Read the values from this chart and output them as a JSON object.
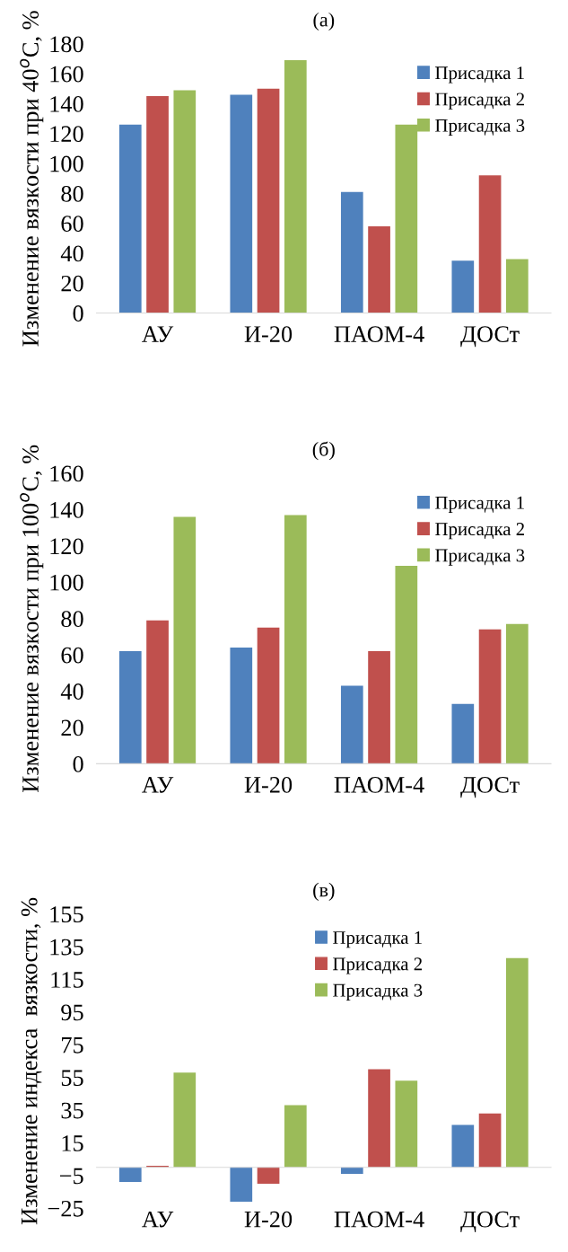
{
  "chart_data": [
    {
      "type": "bar",
      "title": "(a)",
      "ylabel": "Изменение вязкости при 40$^{o}$C, %",
      "categories": [
        "АУ",
        "И-20",
        "ПАОМ-4",
        "ДОСт"
      ],
      "ylim": [
        0,
        180
      ],
      "yticks": [
        0,
        20,
        40,
        60,
        80,
        100,
        120,
        140,
        160,
        180
      ],
      "grid": false,
      "legend": "top right",
      "series": [
        {
          "name": "Присадка 1",
          "color": "#4f81bd",
          "values": [
            126,
            146,
            81,
            35
          ]
        },
        {
          "name": "Присадка 2",
          "color": "#c0504d",
          "values": [
            145,
            150,
            58,
            92
          ]
        },
        {
          "name": "Присадка 3",
          "color": "#9bbb59",
          "values": [
            149,
            169,
            126,
            36
          ]
        }
      ]
    },
    {
      "type": "bar",
      "title": "(б)",
      "ylabel": "Изменение вязкости при 100$^{o}$C, %",
      "categories": [
        "АУ",
        "И-20",
        "ПАОМ-4",
        "ДОСт"
      ],
      "ylim": [
        0,
        160
      ],
      "yticks": [
        0,
        20,
        40,
        60,
        80,
        100,
        120,
        140,
        160
      ],
      "grid": false,
      "legend": "top right",
      "series": [
        {
          "name": "Присадка 1",
          "color": "#4f81bd",
          "values": [
            62,
            64,
            43,
            33
          ]
        },
        {
          "name": "Присадка 2",
          "color": "#c0504d",
          "values": [
            79,
            75,
            62,
            74
          ]
        },
        {
          "name": "Присадка 3",
          "color": "#9bbb59",
          "values": [
            136,
            137,
            109,
            77
          ]
        }
      ]
    },
    {
      "type": "bar",
      "title": "(в)",
      "ylabel": "Изменение индекса  вязкости, %",
      "categories": [
        "АУ",
        "И-20",
        "ПАОМ-4",
        "ДОСт"
      ],
      "ylim": [
        -25,
        155
      ],
      "yticks": [
        {
          "value": -25,
          "label": "−25"
        },
        {
          "value": -5,
          "label": "−5"
        },
        15,
        35,
        55,
        75,
        95,
        115,
        135,
        155
      ],
      "grid": false,
      "legend": "top",
      "series": [
        {
          "name": "Присадка 1",
          "color": "#4f81bd",
          "values": [
            -9,
            -21,
            -4,
            26
          ]
        },
        {
          "name": "Присадка 2",
          "color": "#c0504d",
          "values": [
            1,
            -10,
            60,
            33
          ]
        },
        {
          "name": "Присадка 3",
          "color": "#9bbb59",
          "values": [
            58,
            38,
            53,
            128
          ]
        }
      ]
    }
  ]
}
